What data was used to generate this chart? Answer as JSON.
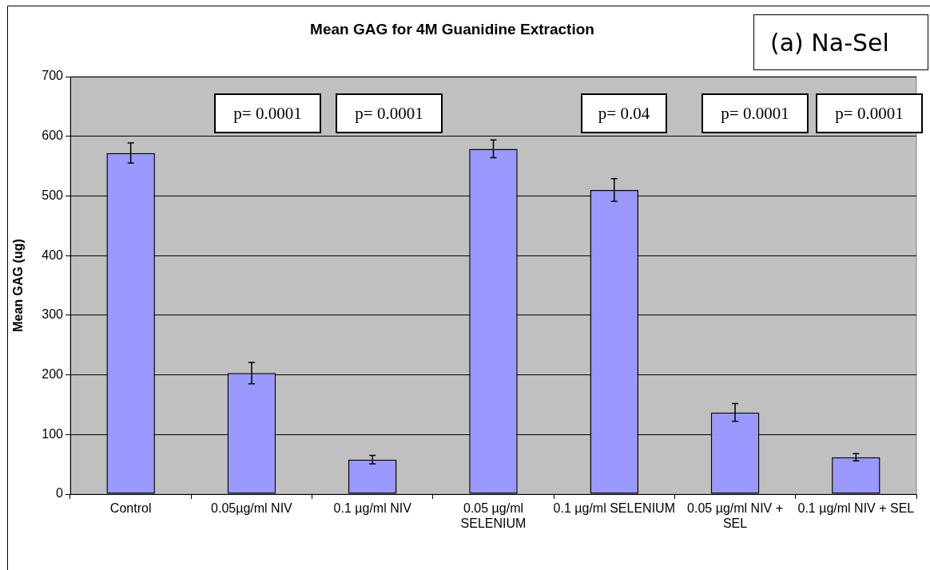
{
  "chart_data": {
    "type": "bar",
    "title": "Mean GAG for 4M Guanidine Extraction",
    "ylabel": "Mean GAG (ug)",
    "categories": [
      "Control",
      "0.05µg/ml NIV",
      "0.1 µg/ml NIV",
      "0.05 µg/ml SELENIUM",
      "0.1 µg/ml SELENIUM",
      "0.05 µg/ml NIV + SEL",
      "0.1 µg/ml NIV + SEL"
    ],
    "values": [
      572,
      203,
      58,
      579,
      510,
      137,
      62
    ],
    "errors": [
      17,
      18,
      7,
      15,
      19,
      15,
      6
    ],
    "color": "#9999ff",
    "ylim": [
      0,
      700
    ],
    "yticks": [
      0,
      100,
      200,
      300,
      400,
      500,
      600,
      700
    ],
    "grid": "y",
    "legend": false,
    "annotations": [
      "(a) Na-Sel",
      "p= 0.0001",
      "p= 0.0001",
      "p= 0.04",
      "p= 0.0001",
      "p= 0.0001"
    ]
  }
}
